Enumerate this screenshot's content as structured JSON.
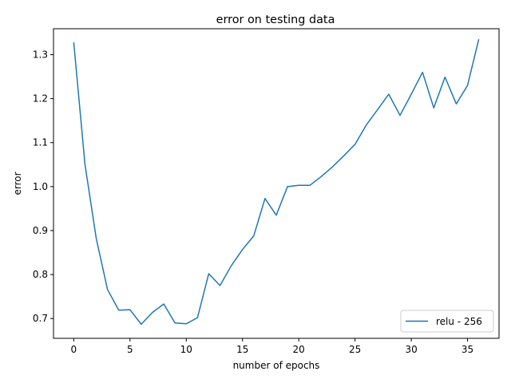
{
  "chart_data": {
    "type": "line",
    "title": "error on testing data",
    "xlabel": "number of epochs",
    "ylabel": "error",
    "xlim": [
      -1.8,
      37.8
    ],
    "ylim": [
      0.655,
      1.359
    ],
    "xticks": [
      0,
      5,
      10,
      15,
      20,
      25,
      30,
      35
    ],
    "yticks": [
      0.7,
      0.8,
      0.9,
      1.0,
      1.1,
      1.2,
      1.3
    ],
    "ytick_labels": [
      "0.7",
      "0.8",
      "0.9",
      "1.0",
      "1.1",
      "1.2",
      "1.3"
    ],
    "grid": false,
    "legend_position": "lower-right",
    "series": [
      {
        "name": "relu - 256",
        "color": "#1f77b4",
        "x": [
          0,
          1,
          2,
          3,
          4,
          5,
          6,
          7,
          8,
          9,
          10,
          11,
          12,
          13,
          14,
          15,
          16,
          17,
          18,
          19,
          20,
          21,
          22,
          23,
          24,
          25,
          26,
          27,
          28,
          29,
          30,
          31,
          32,
          33,
          34,
          35,
          36
        ],
        "y": [
          1.328,
          1.05,
          0.882,
          0.766,
          0.719,
          0.72,
          0.687,
          0.714,
          0.733,
          0.69,
          0.688,
          0.702,
          0.802,
          0.775,
          0.82,
          0.857,
          0.888,
          0.973,
          0.935,
          1.0,
          1.003,
          1.003,
          1.023,
          1.045,
          1.07,
          1.096,
          1.14,
          1.175,
          1.21,
          1.162,
          1.21,
          1.26,
          1.179,
          1.249,
          1.188,
          1.23,
          1.335
        ]
      }
    ]
  }
}
